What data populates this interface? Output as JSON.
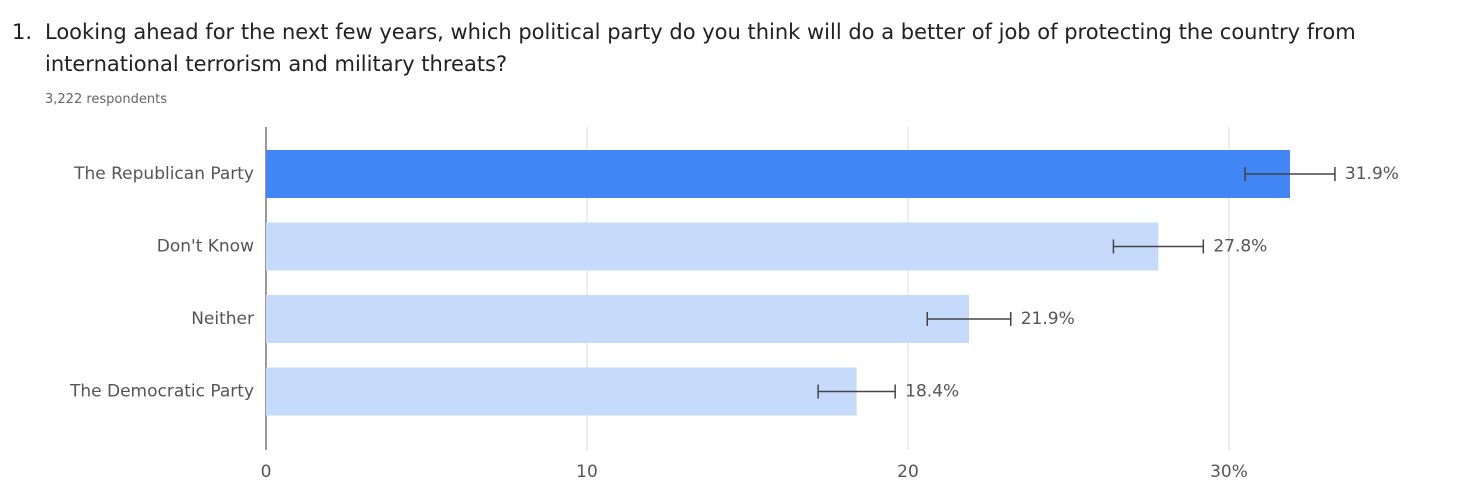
{
  "chart_data": {
    "type": "bar",
    "orientation": "horizontal",
    "question_number": "1.",
    "title": "Looking ahead for the next few years, which political party do you think will do a better of job of protecting the country from international terrorism and military threats?",
    "subtitle": "3,222 respondents",
    "categories": [
      "The Republican Party",
      "Don't Know",
      "Neither",
      "The Democratic Party"
    ],
    "values": [
      31.9,
      27.8,
      21.9,
      18.4
    ],
    "value_labels": [
      "31.9%",
      "27.8%",
      "21.9%",
      "18.4%"
    ],
    "errors": [
      1.4,
      1.4,
      1.3,
      1.2
    ],
    "colors": [
      "#4285f4",
      "#c6dafc",
      "#c6dafc",
      "#c6dafc"
    ],
    "xlim": [
      0,
      37
    ],
    "xticks": [
      0,
      10,
      20,
      {
        "value": 30,
        "label": "30%"
      }
    ],
    "grid": true
  }
}
